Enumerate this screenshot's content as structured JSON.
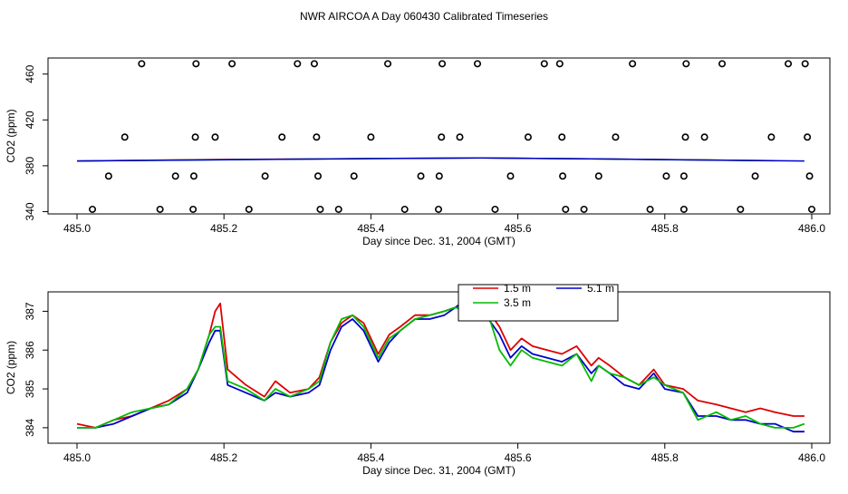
{
  "title": "NWR AIRCOA A  Day 060430  Calibrated Timeseries",
  "colors": {
    "red": "#dd0000",
    "green": "#00bb00",
    "blue": "#0000cc",
    "black": "#000000"
  },
  "chart_data": [
    {
      "type": "scatter",
      "xlabel": "Day since Dec. 31, 2004 (GMT)",
      "ylabel": "CO2 (ppm)",
      "xlim": [
        485.0,
        486.0
      ],
      "ylim": [
        338,
        474
      ],
      "xticks": [
        485.0,
        485.2,
        485.4,
        485.6,
        485.8,
        486.0
      ],
      "xtick_labels": [
        "485.0",
        "485.2",
        "485.4",
        "485.6",
        "485.8",
        "486.0"
      ],
      "yticks": [
        340,
        380,
        420,
        460
      ],
      "ytick_labels": [
        "340",
        "380",
        "420",
        "460"
      ],
      "markers": [
        {
          "x": 485.088,
          "y": 469
        },
        {
          "x": 485.162,
          "y": 469
        },
        {
          "x": 485.211,
          "y": 469
        },
        {
          "x": 485.3,
          "y": 469
        },
        {
          "x": 485.323,
          "y": 469
        },
        {
          "x": 485.423,
          "y": 469
        },
        {
          "x": 485.497,
          "y": 469
        },
        {
          "x": 485.545,
          "y": 469
        },
        {
          "x": 485.636,
          "y": 469
        },
        {
          "x": 485.657,
          "y": 469
        },
        {
          "x": 485.756,
          "y": 469
        },
        {
          "x": 485.829,
          "y": 469
        },
        {
          "x": 485.878,
          "y": 469
        },
        {
          "x": 485.968,
          "y": 469
        },
        {
          "x": 485.991,
          "y": 469
        },
        {
          "x": 485.065,
          "y": 405
        },
        {
          "x": 485.161,
          "y": 405
        },
        {
          "x": 485.188,
          "y": 405
        },
        {
          "x": 485.279,
          "y": 405
        },
        {
          "x": 485.326,
          "y": 405
        },
        {
          "x": 485.4,
          "y": 405
        },
        {
          "x": 485.496,
          "y": 405
        },
        {
          "x": 485.521,
          "y": 405
        },
        {
          "x": 485.614,
          "y": 405
        },
        {
          "x": 485.66,
          "y": 405
        },
        {
          "x": 485.733,
          "y": 405
        },
        {
          "x": 485.828,
          "y": 405
        },
        {
          "x": 485.854,
          "y": 405
        },
        {
          "x": 485.945,
          "y": 405
        },
        {
          "x": 485.994,
          "y": 405
        },
        {
          "x": 485.043,
          "y": 371
        },
        {
          "x": 485.134,
          "y": 371
        },
        {
          "x": 485.159,
          "y": 371
        },
        {
          "x": 485.256,
          "y": 371
        },
        {
          "x": 485.328,
          "y": 371
        },
        {
          "x": 485.377,
          "y": 371
        },
        {
          "x": 485.468,
          "y": 371
        },
        {
          "x": 485.493,
          "y": 371
        },
        {
          "x": 485.59,
          "y": 371
        },
        {
          "x": 485.661,
          "y": 371
        },
        {
          "x": 485.71,
          "y": 371
        },
        {
          "x": 485.802,
          "y": 371
        },
        {
          "x": 485.826,
          "y": 371
        },
        {
          "x": 485.923,
          "y": 371
        },
        {
          "x": 485.997,
          "y": 371
        },
        {
          "x": 485.021,
          "y": 342
        },
        {
          "x": 485.113,
          "y": 342
        },
        {
          "x": 485.158,
          "y": 342
        },
        {
          "x": 485.234,
          "y": 342
        },
        {
          "x": 485.331,
          "y": 342
        },
        {
          "x": 485.356,
          "y": 342
        },
        {
          "x": 485.446,
          "y": 342
        },
        {
          "x": 485.492,
          "y": 342
        },
        {
          "x": 485.569,
          "y": 342
        },
        {
          "x": 485.665,
          "y": 342
        },
        {
          "x": 485.69,
          "y": 342
        },
        {
          "x": 485.78,
          "y": 342
        },
        {
          "x": 485.826,
          "y": 342
        },
        {
          "x": 485.903,
          "y": 342
        },
        {
          "x": 486.0,
          "y": 342
        }
      ],
      "series": [
        {
          "color": "#dd0000",
          "x": [
            485.0,
            485.2,
            485.4,
            485.55,
            485.7,
            485.95
          ],
          "values": [
            384.2,
            385.5,
            386.3,
            386.9,
            386.0,
            384.4
          ]
        },
        {
          "color": "#00bb00",
          "x": [
            485.0,
            485.2,
            485.4,
            485.55,
            485.7,
            485.95
          ],
          "values": [
            384.2,
            385.3,
            386.3,
            386.9,
            386.0,
            384.3
          ]
        },
        {
          "color": "#0000cc",
          "x": [
            485.0,
            485.2,
            485.4,
            485.55,
            485.7,
            485.99
          ],
          "values": [
            384.2,
            385.3,
            386.2,
            386.9,
            386.0,
            384.2
          ]
        }
      ]
    },
    {
      "type": "line",
      "xlabel": "Day since Dec. 31, 2004 (GMT)",
      "ylabel": "CO2 (ppm)",
      "xlim": [
        485.0,
        486.0
      ],
      "ylim": [
        383.6,
        387.5
      ],
      "xticks": [
        485.0,
        485.2,
        485.4,
        485.6,
        485.8,
        486.0
      ],
      "xtick_labels": [
        "485.0",
        "485.2",
        "485.4",
        "485.6",
        "485.8",
        "486.0"
      ],
      "yticks": [
        384,
        385,
        386,
        387
      ],
      "ytick_labels": [
        "384",
        "385",
        "386",
        "387"
      ],
      "legend": {
        "position": "top-center",
        "entries": [
          {
            "label": "1.5 m",
            "color": "#dd0000"
          },
          {
            "label": "5.1 m",
            "color": "#0000cc"
          },
          {
            "label": "3.5 m",
            "color": "#00bb00"
          }
        ]
      },
      "series": [
        {
          "name": "1.5 m",
          "color": "#dd0000",
          "x": [
            485.0,
            485.025,
            485.05,
            485.075,
            485.1,
            485.125,
            485.15,
            485.165,
            485.18,
            485.188,
            485.195,
            485.205,
            485.23,
            485.255,
            485.27,
            485.29,
            485.315,
            485.33,
            485.345,
            485.36,
            485.375,
            485.39,
            485.41,
            485.425,
            485.44,
            485.46,
            485.48,
            485.5,
            485.515,
            485.53,
            485.545,
            485.56,
            485.575,
            485.59,
            485.605,
            485.62,
            485.64,
            485.66,
            485.68,
            485.7,
            485.71,
            485.725,
            485.745,
            485.765,
            485.785,
            485.8,
            485.825,
            485.845,
            485.87,
            485.89,
            485.91,
            485.93,
            485.95,
            485.975,
            485.99
          ],
          "values": [
            384.1,
            384.0,
            384.2,
            384.3,
            384.5,
            384.7,
            385.0,
            385.5,
            386.4,
            387.0,
            387.2,
            385.5,
            385.1,
            384.8,
            385.2,
            384.9,
            385.0,
            385.3,
            386.2,
            386.7,
            386.9,
            386.7,
            385.9,
            386.4,
            386.6,
            386.9,
            386.9,
            387.0,
            387.1,
            387.3,
            387.2,
            387.0,
            386.6,
            386.0,
            386.3,
            386.1,
            386.0,
            385.9,
            386.1,
            385.6,
            385.8,
            385.6,
            385.3,
            385.1,
            385.5,
            385.1,
            385.0,
            384.7,
            384.6,
            384.5,
            384.4,
            384.5,
            384.4,
            384.3,
            384.3
          ]
        },
        {
          "name": "5.1 m",
          "color": "#0000cc",
          "x": [
            485.0,
            485.025,
            485.05,
            485.075,
            485.1,
            485.125,
            485.15,
            485.165,
            485.18,
            485.188,
            485.195,
            485.205,
            485.23,
            485.255,
            485.27,
            485.29,
            485.315,
            485.33,
            485.345,
            485.36,
            485.375,
            485.39,
            485.41,
            485.425,
            485.44,
            485.46,
            485.48,
            485.5,
            485.515,
            485.53,
            485.545,
            485.56,
            485.575,
            485.59,
            485.605,
            485.62,
            485.64,
            485.66,
            485.68,
            485.7,
            485.71,
            485.725,
            485.745,
            485.765,
            485.785,
            485.8,
            485.825,
            485.845,
            485.87,
            485.89,
            485.91,
            485.93,
            485.95,
            485.975,
            485.99
          ],
          "values": [
            384.0,
            384.0,
            384.1,
            384.3,
            384.5,
            384.6,
            384.9,
            385.5,
            386.2,
            386.5,
            386.5,
            385.1,
            384.9,
            384.7,
            384.9,
            384.8,
            384.9,
            385.1,
            386.0,
            386.6,
            386.8,
            386.5,
            385.7,
            386.2,
            386.5,
            386.8,
            386.8,
            386.9,
            387.1,
            387.3,
            387.1,
            386.8,
            386.4,
            385.8,
            386.1,
            385.9,
            385.8,
            385.7,
            385.9,
            385.4,
            385.6,
            385.4,
            385.1,
            385.0,
            385.4,
            385.0,
            384.9,
            384.3,
            384.3,
            384.2,
            384.2,
            384.1,
            384.1,
            383.9,
            383.9
          ]
        },
        {
          "name": "3.5 m",
          "color": "#00bb00",
          "x": [
            485.0,
            485.025,
            485.05,
            485.075,
            485.1,
            485.125,
            485.15,
            485.165,
            485.18,
            485.188,
            485.195,
            485.205,
            485.23,
            485.255,
            485.27,
            485.29,
            485.315,
            485.33,
            485.345,
            485.36,
            485.375,
            485.39,
            485.41,
            485.425,
            485.44,
            485.46,
            485.48,
            485.5,
            485.515,
            485.53,
            485.545,
            485.56,
            485.575,
            485.59,
            485.605,
            485.62,
            485.64,
            485.66,
            485.68,
            485.7,
            485.71,
            485.725,
            485.745,
            485.765,
            485.785,
            485.8,
            485.825,
            485.845,
            485.87,
            485.89,
            485.91,
            485.93,
            485.95,
            485.975,
            485.99
          ],
          "values": [
            384.0,
            384.0,
            384.2,
            384.4,
            384.5,
            384.6,
            385.0,
            385.5,
            386.4,
            386.6,
            386.6,
            385.2,
            385.0,
            384.7,
            385.0,
            384.8,
            385.0,
            385.2,
            386.2,
            386.8,
            386.9,
            386.6,
            385.8,
            386.3,
            386.5,
            386.8,
            386.9,
            387.0,
            387.1,
            387.0,
            387.1,
            386.9,
            386.0,
            385.6,
            386.0,
            385.8,
            385.7,
            385.6,
            385.9,
            385.2,
            385.6,
            385.4,
            385.3,
            385.1,
            385.3,
            385.1,
            384.9,
            384.2,
            384.4,
            384.2,
            384.3,
            384.1,
            384.0,
            384.0,
            384.1
          ]
        }
      ]
    }
  ]
}
